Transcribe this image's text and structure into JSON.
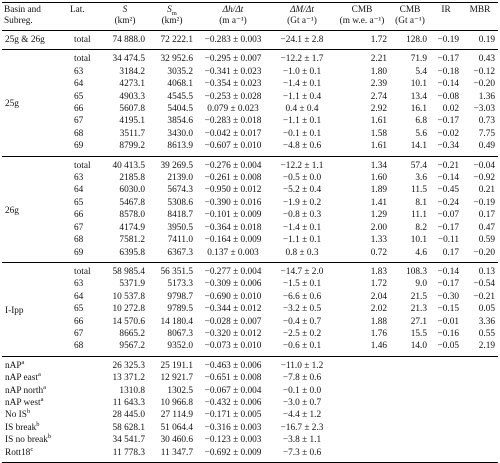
{
  "header": {
    "basin": "Basin and",
    "subreg": "Subreg.",
    "lat": "Lat.",
    "s": "S",
    "s_unit": "(km²)",
    "sm": "S",
    "sm_sub": "m",
    "sm_unit": "(km²)",
    "dh": "Δh/Δt",
    "dh_unit": "(m a⁻¹)",
    "dm": "ΔM/Δt",
    "dm_unit": "(Gt a⁻¹)",
    "cmb1": "CMB",
    "cmb1_unit": "(m w.e. a⁻¹)",
    "cmb2": "CMB",
    "cmb2_unit": "(Gt a⁻¹)",
    "ir": "IR",
    "mbr": "MBR"
  },
  "groups": [
    {
      "name": "25g & 26g",
      "rows": [
        [
          "total",
          "74 888.0",
          "72 222.1",
          "−0.283 ± 0.003",
          "−24.1 ± 2.8",
          "1.72",
          "128.0",
          "−0.19",
          "0.19"
        ]
      ]
    },
    {
      "name": "25g",
      "rows": [
        [
          "total",
          "34 474.5",
          "32 952.6",
          "−0.295 ± 0.007",
          "−12.2 ± 1.7",
          "2.21",
          "71.9",
          "−0.17",
          "0.43"
        ],
        [
          "63",
          "3184.2",
          "3035.2",
          "−0.341 ± 0.023",
          "−1.0 ± 0.1",
          "1.80",
          "5.4",
          "−0.18",
          "−0.12"
        ],
        [
          "64",
          "4273.1",
          "4068.1",
          "−0.354 ± 0.023",
          "−1.4 ± 0.1",
          "2.39",
          "10.1",
          "−0.14",
          "−0.20"
        ],
        [
          "65",
          "4903.3",
          "4545.5",
          "−0.253 ± 0.028",
          "−1.1 ± 0.4",
          "2.74",
          "13.4",
          "−0.08",
          "1.36"
        ],
        [
          "66",
          "5607.8",
          "5404.5",
          "0.079 ± 0.023",
          "0.4 ± 0.4",
          "2.92",
          "16.1",
          "0.02",
          "−3.03"
        ],
        [
          "67",
          "4195.1",
          "3854.6",
          "−0.283 ± 0.018",
          "−1.1 ± 0.1",
          "1.61",
          "6.8",
          "−0.17",
          "0.73"
        ],
        [
          "68",
          "3511.7",
          "3430.0",
          "−0.042 ± 0.017",
          "−0.1 ± 0.1",
          "1.58",
          "5.6",
          "−0.02",
          "7.75"
        ],
        [
          "69",
          "8799.2",
          "8613.9",
          "−0.607 ± 0.010",
          "−4.8 ± 0.6",
          "1.61",
          "14.1",
          "−0.34",
          "0.49"
        ]
      ]
    },
    {
      "name": "26g",
      "rows": [
        [
          "total",
          "40 413.5",
          "39 269.5",
          "−0.276 ± 0.004",
          "−12.2 ± 1.1",
          "1.34",
          "57.4",
          "−0.21",
          "−0.04"
        ],
        [
          "63",
          "2185.8",
          "2139.0",
          "−0.261 ± 0.008",
          "−0.5 ± 0.0",
          "1.60",
          "3.6",
          "−0.14",
          "−0.92"
        ],
        [
          "64",
          "6030.0",
          "5674.3",
          "−0.950 ± 0.012",
          "−5.2 ± 0.4",
          "1.89",
          "11.5",
          "−0.45",
          "0.21"
        ],
        [
          "65",
          "5467.8",
          "5308.6",
          "−0.390 ± 0.016",
          "−1.9 ± 0.2",
          "1.41",
          "8.1",
          "−0.24",
          "−0.19"
        ],
        [
          "66",
          "8578.0",
          "8418.7",
          "−0.101 ± 0.009",
          "−0.8 ± 0.3",
          "1.29",
          "11.1",
          "−0.07",
          "0.17"
        ],
        [
          "67",
          "4174.9",
          "3950.5",
          "−0.364 ± 0.018",
          "−1.4 ± 0.1",
          "2.00",
          "8.2",
          "−0.17",
          "0.47"
        ],
        [
          "68",
          "7581.2",
          "7411.0",
          "−0.164 ± 0.009",
          "−1.1 ± 0.1",
          "1.33",
          "10.1",
          "−0.11",
          "0.59"
        ],
        [
          "69",
          "6395.8",
          "6367.3",
          "0.137 ± 0.003",
          "0.8 ± 0.3",
          "0.72",
          "4.6",
          "0.17",
          "−0.20"
        ]
      ]
    },
    {
      "name": "I-Ipp",
      "rows": [
        [
          "total",
          "58 985.4",
          "56 351.5",
          "−0.277 ± 0.004",
          "−14.7 ± 2.0",
          "1.83",
          "108.3",
          "−0.14",
          "0.13"
        ],
        [
          "63",
          "5371.9",
          "5173.3",
          "−0.309 ± 0.006",
          "−1.5 ± 0.1",
          "1.72",
          "9.0",
          "−0.17",
          "−0.54"
        ],
        [
          "64",
          "10 537.8",
          "9798.7",
          "−0.690 ± 0.010",
          "−6.6 ± 0.6",
          "2.04",
          "21.5",
          "−0.30",
          "−0.21"
        ],
        [
          "65",
          "10 272.8",
          "9789.5",
          "−0.344 ± 0.012",
          "−3.2 ± 0.5",
          "2.02",
          "21.3",
          "−0.15",
          "0.05"
        ],
        [
          "66",
          "14 570.6",
          "14 180.4",
          "−0.028 ± 0.007",
          "−0.4 ± 0.7",
          "1.88",
          "27.1",
          "−0.01",
          "3.36"
        ],
        [
          "67",
          "8665.2",
          "8067.3",
          "−0.320 ± 0.012",
          "−2.5 ± 0.2",
          "1.76",
          "15.5",
          "−0.16",
          "0.55"
        ],
        [
          "68",
          "9567.2",
          "9352.0",
          "−0.073 ± 0.010",
          "−0.6 ± 0.1",
          "1.46",
          "14.0",
          "−0.05",
          "2.19"
        ]
      ]
    },
    {
      "rows": [
        [
          {
            "name": "nAP",
            "note": "a"
          },
          "26 325.3",
          "25 191.1",
          "−0.463 ± 0.006",
          "−11.0 ± 1.2"
        ],
        [
          {
            "name": "nAP east",
            "note": "a"
          },
          "13 371.2",
          "12 921.7",
          "−0.651 ± 0.008",
          "−7.8 ± 0.6"
        ],
        [
          {
            "name": "nAP north",
            "note": "a"
          },
          "1310.8",
          "1302.5",
          "−0.067 ± 0.004",
          "−0.1 ± 0.0"
        ],
        [
          {
            "name": "nAP west",
            "note": "a"
          },
          "11 643.3",
          "10 966.8",
          "−0.432 ± 0.006",
          "−3.0 ± 0.7"
        ],
        [
          {
            "name": "No IS",
            "note": "b"
          },
          "28 445.0",
          "27 114.9",
          "−0.171 ± 0.005",
          "−4.4 ± 1.2"
        ],
        [
          {
            "name": "IS break",
            "note": "b"
          },
          "58 628.1",
          "51 064.4",
          "−0.316 ± 0.003",
          "−16.7 ± 2.3"
        ],
        [
          {
            "name": "IS no break",
            "note": "b"
          },
          "34 541.7",
          "30 460.6",
          "−0.123 ± 0.003",
          "−3.8 ± 1.1"
        ],
        [
          {
            "name": "Rott18",
            "note": "c"
          },
          "11 778.3",
          "11 347.7",
          "−0.692 ± 0.009",
          "−7.3 ± 0.6"
        ]
      ]
    }
  ]
}
